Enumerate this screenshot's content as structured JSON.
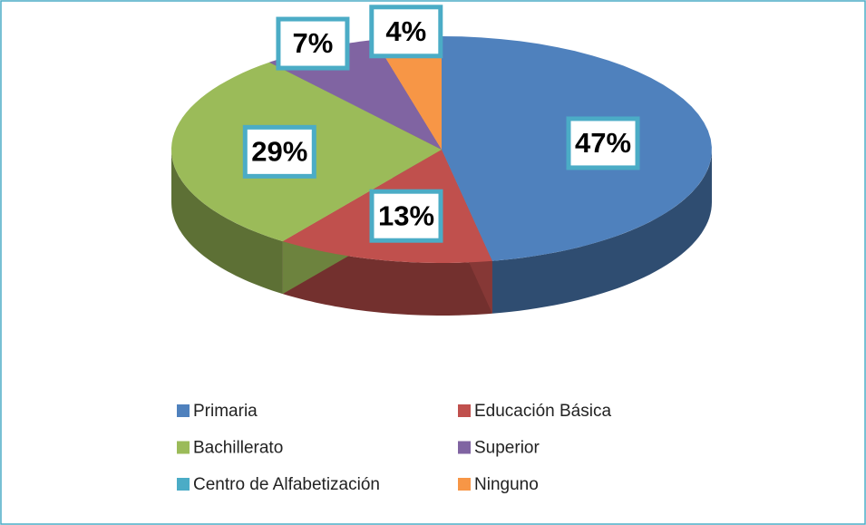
{
  "chart_data": {
    "type": "pie3d",
    "categories": [
      "Primaria",
      "Educación Básica",
      "Bachillerato",
      "Superior",
      "Centro de Alfabetización",
      "Ninguno"
    ],
    "values": [
      47,
      13,
      29,
      7,
      0,
      4
    ],
    "value_labels": [
      "47%",
      "13%",
      "29%",
      "7%",
      null,
      "4%"
    ],
    "colors": [
      "#4f81bd",
      "#c0504d",
      "#9bbb59",
      "#8064a2",
      "#4bacc6",
      "#f79646"
    ],
    "legend": "bottom"
  }
}
